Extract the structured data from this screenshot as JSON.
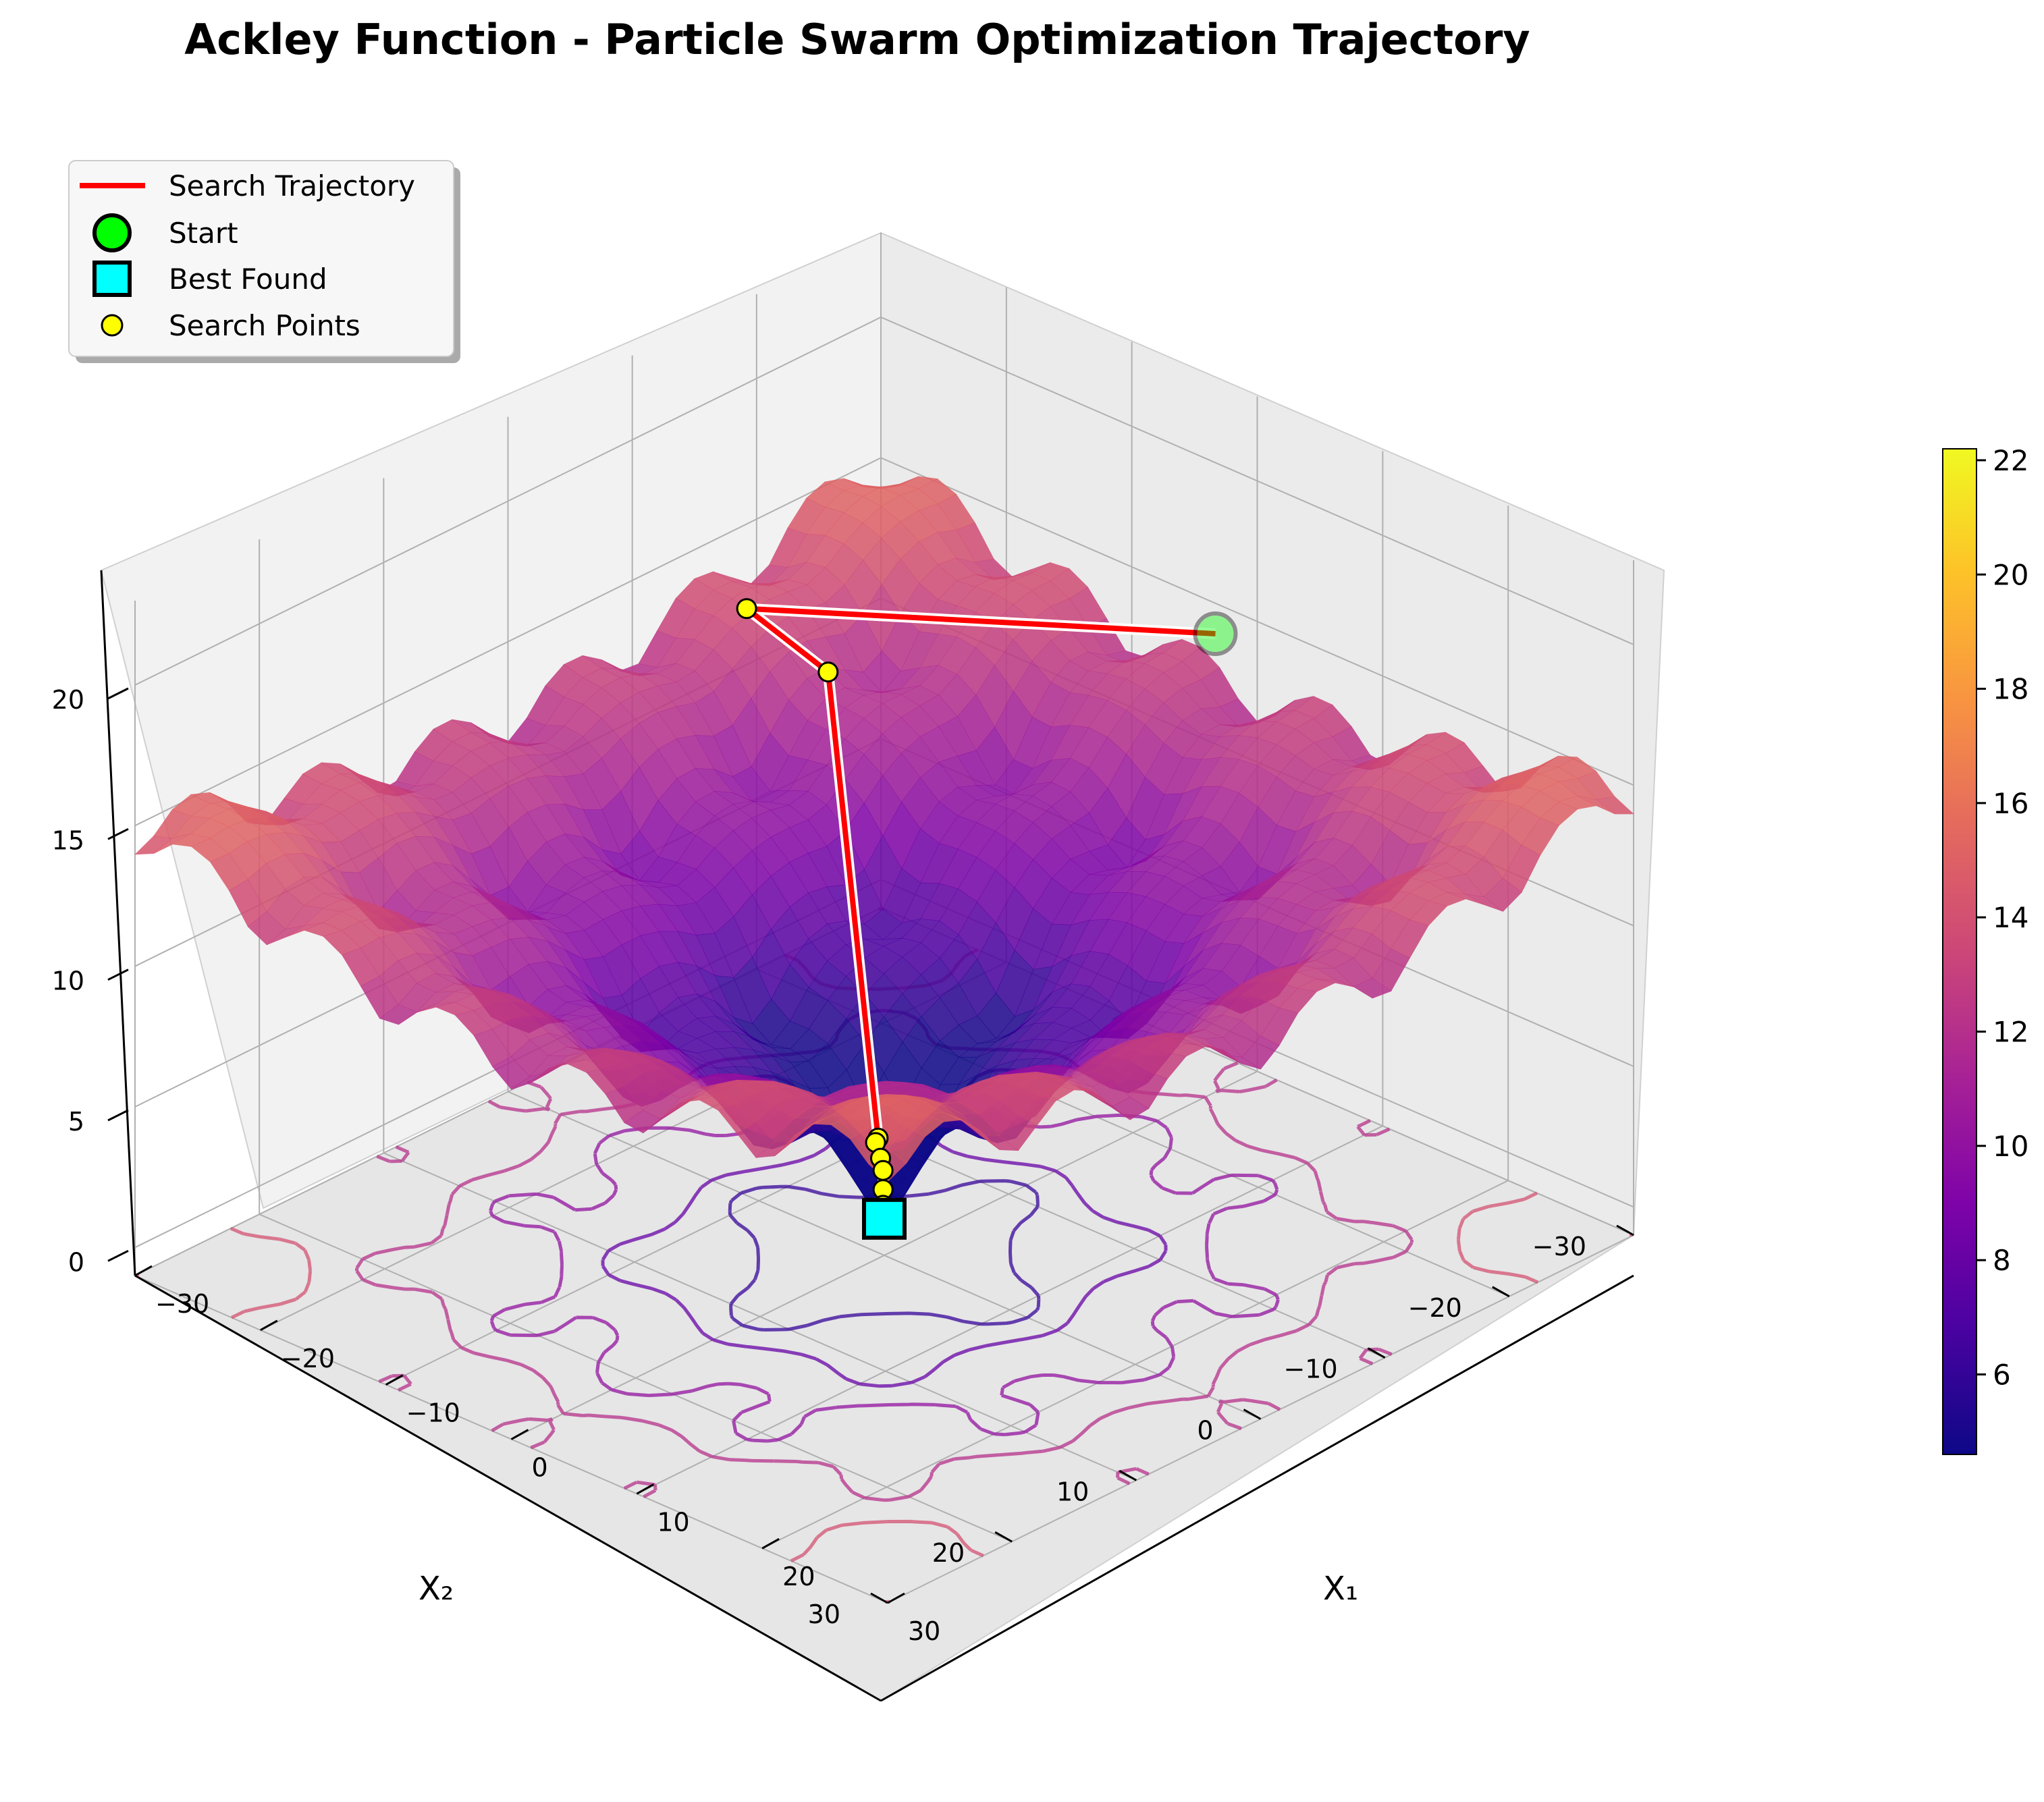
{
  "chart_data": {
    "type": "surface3d",
    "title": "Ackley Function - Particle Swarm Optimization Trajectory",
    "xlabel": "X₁",
    "ylabel": "X₂",
    "zlabel": "",
    "xlim": [
      -30,
      30
    ],
    "ylim": [
      -30,
      30
    ],
    "zlim": [
      -1,
      23
    ],
    "x_ticks": [
      "−30",
      "−20",
      "−10",
      "0",
      "10",
      "20",
      "30"
    ],
    "y_ticks": [
      "−30",
      "−20",
      "−10",
      "0",
      "10",
      "20",
      "30"
    ],
    "z_ticks": [
      "0",
      "5",
      "10",
      "15",
      "20"
    ],
    "colormap": "plasma",
    "colorbar": {
      "min": 4.6,
      "max": 22.2,
      "ticks": [
        "6",
        "8",
        "10",
        "12",
        "14",
        "16",
        "18",
        "20",
        "22"
      ]
    },
    "legend": {
      "placement": "upper-left",
      "entries": [
        {
          "label": "Search Trajectory",
          "marker": "line",
          "color": "#ff0000"
        },
        {
          "label": "Start",
          "marker": "circle",
          "color": "#00ff00"
        },
        {
          "label": "Best Found",
          "marker": "square",
          "color": "#00ffff"
        },
        {
          "label": "Search Points",
          "marker": "small-circle",
          "color": "#ffff00"
        }
      ]
    },
    "trajectory": [
      {
        "x": 14.5,
        "y": -12.0,
        "z": 21.3
      },
      {
        "x": -8.0,
        "y": 3.0,
        "z": 21.1
      },
      {
        "x": -2.0,
        "y": 2.5,
        "z": 19.9
      },
      {
        "x": 0.3,
        "y": 0.8,
        "z": 3.4
      },
      {
        "x": -0.4,
        "y": 0.3,
        "z": 3.0
      },
      {
        "x": 0.2,
        "y": 0.5,
        "z": 2.6
      },
      {
        "x": -0.1,
        "y": 0.0,
        "z": 2.0
      },
      {
        "x": 0.1,
        "y": 0.2,
        "z": 1.4
      },
      {
        "x": 0.0,
        "y": 0.1,
        "z": 0.8
      },
      {
        "x": 0.0,
        "y": 0.0,
        "z": 0.3
      }
    ],
    "start": {
      "x": 14.5,
      "y": -12.0,
      "z": 21.3
    },
    "best_found": {
      "x": 0.0,
      "y": 0.0,
      "z": 0.3
    },
    "grid": true
  },
  "colors": {
    "trajectory": "#ff0000",
    "start": "#00ff00",
    "best": "#00ffff",
    "points": "#ffff00"
  }
}
